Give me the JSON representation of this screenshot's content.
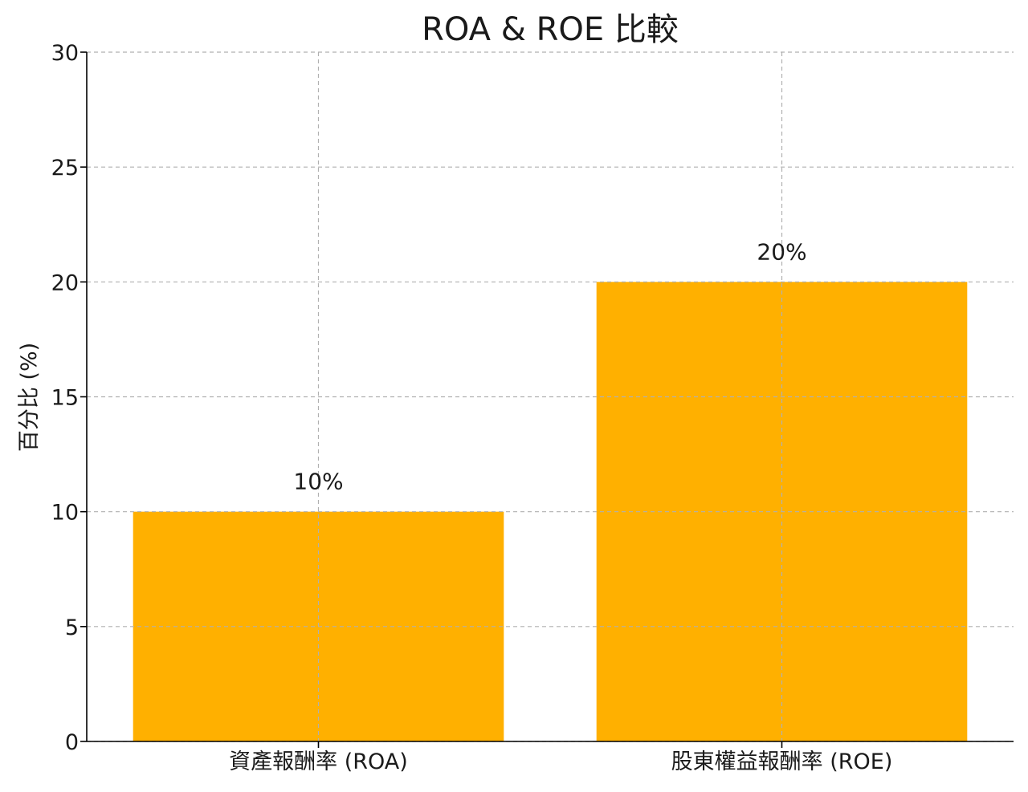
{
  "chart_data": {
    "type": "bar",
    "title": "ROA & ROE 比較",
    "xlabel": "",
    "ylabel": "百分比 (%)",
    "categories": [
      "資產報酬率 (ROA)",
      "股東權益報酬率 (ROE)"
    ],
    "values": [
      10,
      20
    ],
    "value_labels": [
      "10%",
      "20%"
    ],
    "ylim": [
      0,
      30
    ],
    "yticks": [
      0,
      5,
      10,
      15,
      20,
      25,
      30
    ],
    "grid": true,
    "bar_color": "#FFB000"
  }
}
